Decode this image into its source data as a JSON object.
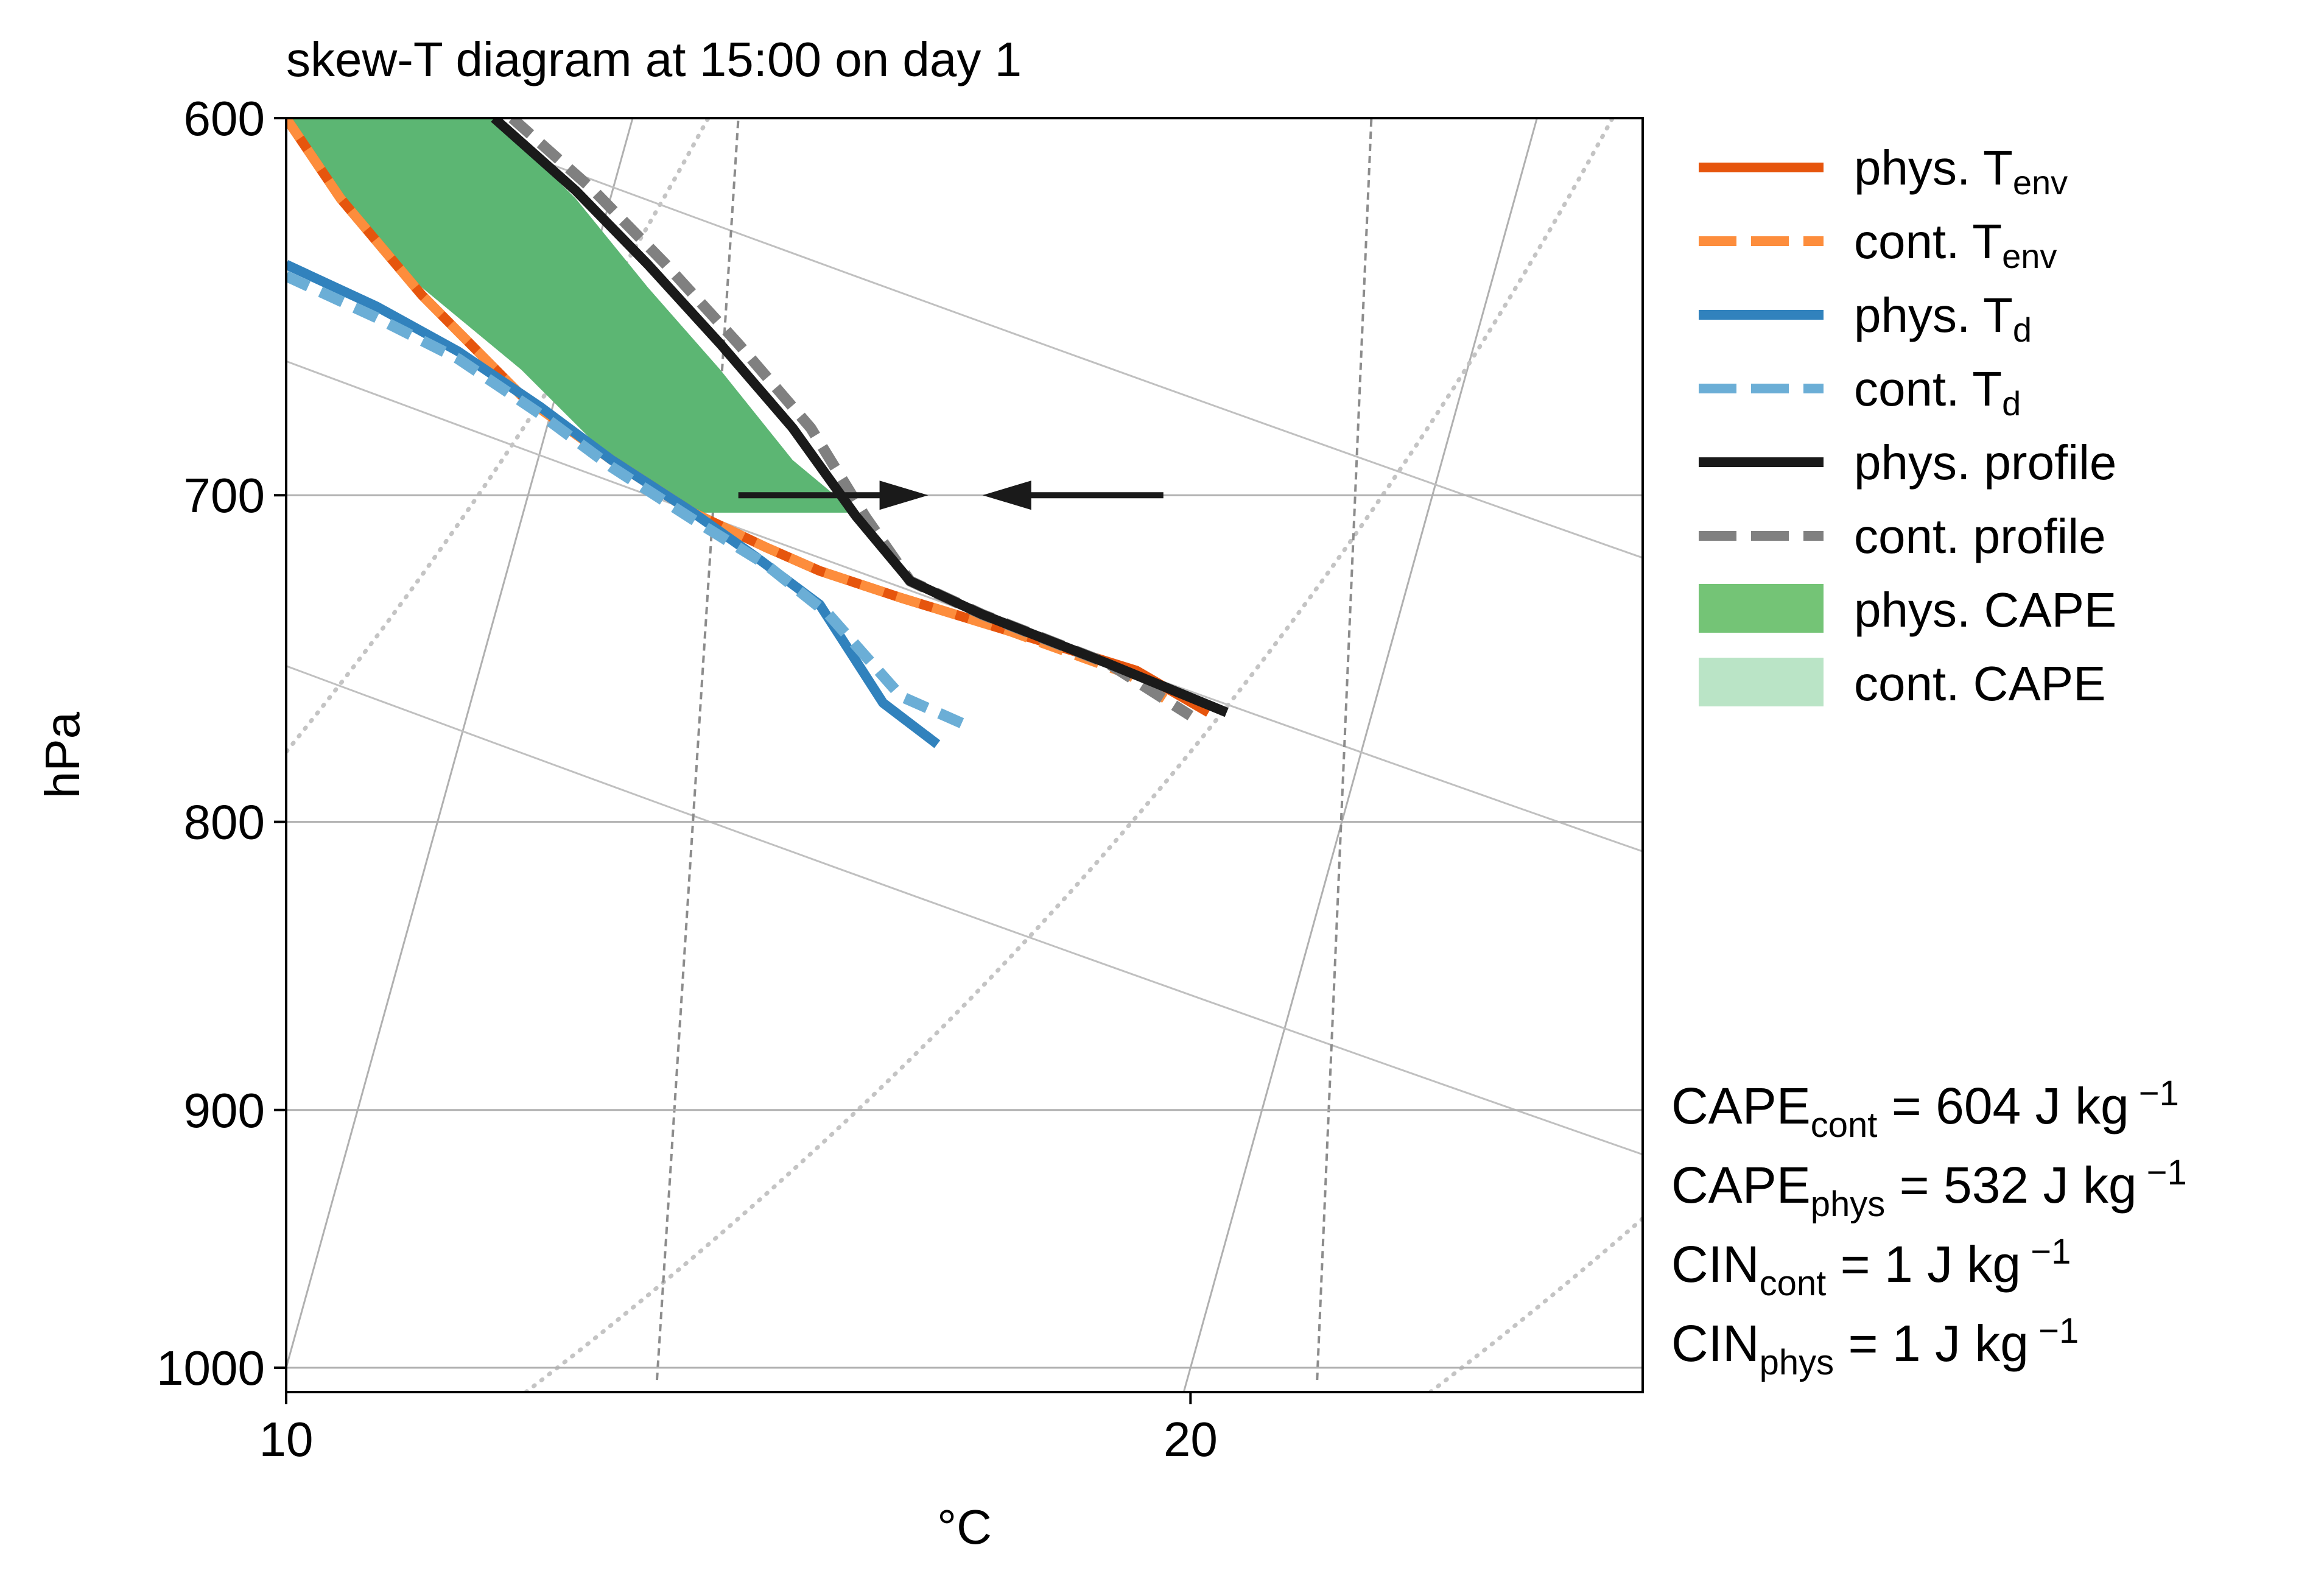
{
  "chart_data": {
    "type": "line",
    "title": "skew-T diagram at 15:00 on day 1",
    "xlabel": "°C",
    "ylabel": "hPa",
    "xlim": [
      10,
      25
    ],
    "ylim": [
      1010,
      600
    ],
    "y_scale": "log",
    "x_ticks": [
      10,
      20
    ],
    "y_ticks": [
      600,
      700,
      800,
      900,
      1000
    ],
    "grid": true,
    "legend_position": "upper-right, outside plot",
    "colors": {
      "phys_tenv": "#e6550d",
      "cont_tenv": "#fd8d3c",
      "phys_td": "#3182bd",
      "cont_td": "#6baed6",
      "phys_profile": "#1a1a1a",
      "cont_profile": "#808080",
      "phys_cape": "#74c476",
      "cont_cape": "#bae4c6"
    },
    "legend": [
      {
        "key": "phys_tenv",
        "prefix": "phys. T",
        "sub": "env",
        "style": "solid-line"
      },
      {
        "key": "cont_tenv",
        "prefix": "cont. T",
        "sub": "env",
        "style": "dashed-line"
      },
      {
        "key": "phys_td",
        "prefix": "phys. T",
        "sub": "d",
        "style": "solid-line"
      },
      {
        "key": "cont_td",
        "prefix": "cont. T",
        "sub": "d",
        "style": "dashed-line"
      },
      {
        "key": "phys_profile",
        "prefix": "phys. profile",
        "sub": "",
        "style": "solid-line"
      },
      {
        "key": "cont_profile",
        "prefix": "cont. profile",
        "sub": "",
        "style": "dashed-line"
      },
      {
        "key": "phys_cape",
        "prefix": "phys. CAPE",
        "sub": "",
        "style": "patch"
      },
      {
        "key": "cont_cape",
        "prefix": "cont. CAPE",
        "sub": "",
        "style": "patch"
      }
    ],
    "series": [
      {
        "key": "phys_tenv",
        "x": [
          10.0,
          10.6,
          11.5,
          12.6,
          13.6,
          14.5,
          15.3,
          15.9,
          16.8,
          18.0,
          19.4,
          20.2
        ],
        "y": [
          600,
          620,
          645,
          672,
          690,
          705,
          715,
          722,
          730,
          740,
          752,
          765
        ]
      },
      {
        "key": "cont_tenv",
        "x": [
          10.0,
          10.6,
          11.5,
          12.6,
          13.6,
          14.5,
          15.3,
          15.9,
          16.8,
          18.0,
          19.3,
          20.0
        ],
        "y": [
          600,
          620,
          645,
          672,
          690,
          705,
          715,
          722,
          730,
          740,
          753,
          766
        ]
      },
      {
        "key": "phys_td",
        "x": [
          10.0,
          11.0,
          11.9,
          12.8,
          13.6,
          14.5,
          15.2,
          15.9,
          16.6,
          17.2
        ],
        "y": [
          637,
          648,
          660,
          675,
          690,
          705,
          718,
          732,
          762,
          775
        ]
      },
      {
        "key": "cont_td",
        "x": [
          10.0,
          11.0,
          11.9,
          12.8,
          13.6,
          14.5,
          15.3,
          16.0,
          16.8,
          17.6
        ],
        "y": [
          640,
          651,
          662,
          677,
          692,
          707,
          720,
          735,
          760,
          770
        ]
      },
      {
        "key": "phys_profile",
        "x": [
          12.3,
          13.2,
          14.0,
          14.8,
          15.6,
          16.3,
          16.9,
          17.7,
          19.1,
          20.4
        ],
        "y": [
          600,
          618,
          637,
          658,
          681,
          706,
          725,
          735,
          750,
          765
        ]
      },
      {
        "key": "cont_profile",
        "x": [
          12.5,
          13.4,
          14.2,
          15.0,
          15.8,
          16.4,
          16.9,
          17.7,
          19.1,
          20.0
        ],
        "y": [
          600,
          618,
          637,
          658,
          681,
          706,
          725,
          735,
          750,
          766
        ]
      }
    ],
    "cape_region": {
      "key": "phys_cape",
      "upper_x": [
        12.3,
        13.2,
        14.0,
        14.8,
        15.6,
        16.3
      ],
      "lower_x": [
        10.0,
        10.6,
        11.5,
        12.6,
        13.6,
        14.5
      ],
      "y": [
        600,
        620,
        643,
        665,
        690,
        705
      ]
    },
    "annotations": {
      "arrows": [
        {
          "from": 15.0,
          "to": 17.1,
          "p": 700
        },
        {
          "from": 19.7,
          "to": 17.7,
          "p": 700
        }
      ],
      "stats": [
        {
          "name": "CAPE",
          "sub": "cont",
          "text": " = 604 J kg",
          "exp": " −1"
        },
        {
          "name": "CAPE",
          "sub": "phys",
          "text": " = 532 J kg",
          "exp": " −1"
        },
        {
          "name": "CIN",
          "sub": "cont",
          "text": " = 1 J kg",
          "exp": " −1"
        },
        {
          "name": "CIN",
          "sub": "phys",
          "text": " = 1 J kg",
          "exp": " −1"
        }
      ]
    },
    "background_lines": {
      "isotherms_skewed": [
        -30,
        -20,
        -10,
        0,
        10,
        20,
        30
      ],
      "dry_adiabats_K": [
        305,
        315,
        325
      ],
      "moist_adiabats_C": [
        3,
        13,
        23
      ],
      "mixing_ratio_g_kg": [
        10,
        20
      ]
    }
  }
}
